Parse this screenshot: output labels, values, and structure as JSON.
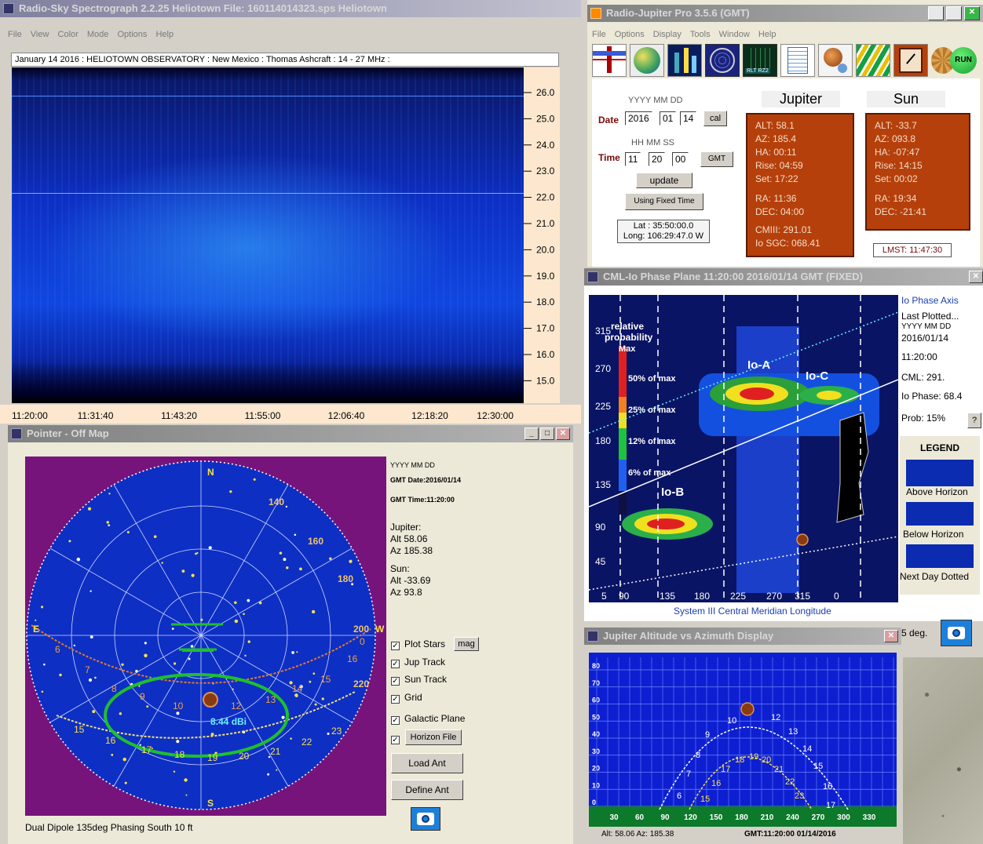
{
  "spectrograph": {
    "title": "Radio-Sky Spectrograph   2.2.25   Heliotown        File: 160114014323.sps   Heliotown",
    "menu": [
      "File",
      "View",
      "Color",
      "Mode",
      "Options",
      "Help"
    ],
    "header": "January 14 2016  :  HELIOTOWN OBSERVATORY :  New Mexico  :  Thomas Ashcraft  :  14 - 27 MHz  :",
    "freq_ticks": [
      "26.0",
      "25.0",
      "24.0",
      "23.0",
      "22.0",
      "21.0",
      "20.0",
      "19.0",
      "18.0",
      "17.0",
      "16.0",
      "15.0"
    ],
    "time_ticks": [
      "11:20:00",
      "11:31:40",
      "11:43:20",
      "11:55:00",
      "12:06:40",
      "12:18:20",
      "12:30:00"
    ]
  },
  "pointer": {
    "title": "Pointer - Off Map",
    "date_header": "YYYY MM DD",
    "gmt_date": "GMT Date:2016/01/14",
    "gmt_time": "GMT Time:11:20:00",
    "jupiter_label": "Jupiter:",
    "jupiter_alt": "Alt 58.06",
    "jupiter_az": "Az 185.38",
    "sun_label": "Sun:",
    "sun_alt": "Alt -33.69",
    "sun_az": "Az 93.8",
    "cb_stars": "Plot Stars",
    "mag_btn": "mag",
    "cb_jup": "Jup Track",
    "cb_sun": "Sun Track",
    "cb_grid": "Grid",
    "cb_galactic": "Galactic Plane",
    "horizon_btn": "Horizon File",
    "load_btn": "Load Ant",
    "define_btn": "Define Ant",
    "gain": "8.44 dBi",
    "footer": "Dual Dipole 135deg Phasing South 10 ft",
    "compass": {
      "n": "N",
      "s": "S",
      "e": "E",
      "w": "W"
    },
    "az_labels": [
      "140",
      "160",
      "180",
      "200",
      "220"
    ],
    "jup_hours": [
      "6",
      "7",
      "8",
      "9",
      "10",
      "12",
      "13",
      "14",
      "15",
      "16",
      "0"
    ],
    "sun_hours": [
      "15",
      "16",
      "17",
      "18",
      "19",
      "20",
      "21",
      "22",
      "23"
    ]
  },
  "rjp": {
    "title": "Radio-Jupiter Pro   3.5.6  (GMT)",
    "menu": [
      "File",
      "Options",
      "Display",
      "Tools",
      "Window",
      "Help"
    ],
    "run_label": "RUN",
    "rt_label": "RLT RZ2",
    "date_fmt": "YYYY  MM  DD",
    "date_label": "Date",
    "year": "2016",
    "month": "01",
    "day": "14",
    "cal_btn": "cal",
    "time_fmt": "HH  MM  SS",
    "time_label": "Time",
    "hh": "11",
    "mm": "20",
    "ss": "00",
    "gmt_btn": "GMT",
    "update_btn": "update",
    "fixed_btn": "Using Fixed Time",
    "lat": "Lat : 35:50:00.0",
    "long": "Long: 106:29:47.0 W",
    "jupiter_head": "Jupiter",
    "sun_head": "Sun",
    "jupiter_lines": [
      "ALT: 58.1",
      "AZ: 185.4",
      "HA: 00:11",
      "Rise: 04:59",
      "Set: 17:22",
      "",
      "RA: 11:36",
      "DEC: 04:00",
      "",
      "CMIII: 291.01",
      "Io SGC: 068.41"
    ],
    "sun_lines": [
      "ALT: -33.7",
      "AZ: 093.8",
      "HA: -07:47",
      "Rise: 14:15",
      "Set: 00:02",
      "",
      "RA: 19:34",
      "DEC: -21:41"
    ],
    "lmst": "LMST: 11:47:30"
  },
  "cml": {
    "title": "CML-Io Phase Plane  11:20:00   2016/01/14 GMT  (FIXED)",
    "legend_title_1": "relative",
    "legend_title_2": "probability",
    "legend_max": "Max",
    "legend_50": "50% of max",
    "legend_25": "25% of max",
    "legend_12": "12% of max",
    "legend_6": "6% of max",
    "io_a": "Io-A",
    "io_b": "Io-B",
    "io_c": "Io-C",
    "y_ticks": [
      "315",
      "270",
      "225",
      "180",
      "135",
      "90",
      "45"
    ],
    "x_ticks": [
      "5",
      "90",
      "135",
      "180",
      "225",
      "270",
      "315",
      "0"
    ],
    "xlabel": "System III Central Meridian Longitude",
    "side": {
      "axis": "Io Phase Axis",
      "last": "Last Plotted...",
      "fmt": "YYYY MM DD",
      "date": "2016/01/14",
      "time": "11:20:00",
      "cml": "CML: 291.",
      "iophase": "Io Phase: 68.4",
      "prob": "Prob:  15%",
      "q_btn": "?",
      "legend": "LEGEND",
      "above": "Above Horizon",
      "below": "Below Horizon",
      "next": "Next Day Dotted",
      "deg": "5 deg."
    }
  },
  "altaz": {
    "title": "Jupiter Altitude vs Azimuth Display",
    "y_ticks": [
      "80",
      "70",
      "60",
      "50",
      "40",
      "30",
      "20",
      "10",
      "0"
    ],
    "x_ticks": [
      "30",
      "60",
      "90",
      "120",
      "150",
      "180",
      "210",
      "240",
      "270",
      "300",
      "330"
    ],
    "status_left": "Alt: 58.06   Az: 185.38",
    "status_right": "GMT:11:20:00   01/14/2016",
    "jup_hours": [
      "6",
      "7",
      "8",
      "9",
      "10",
      "12",
      "13",
      "14",
      "15",
      "16",
      "17"
    ],
    "sun_hours": [
      "15",
      "16",
      "17",
      "18",
      "19",
      "20",
      "21",
      "22",
      "23"
    ]
  },
  "colors": {
    "spectro_bg": "#0a1f8c",
    "sky": "#0d2fc4",
    "map_bg": "#76147c",
    "orange_panel": "#b5400b",
    "grid_green": "#1fbf2c",
    "track_orange": "#e67a22"
  }
}
